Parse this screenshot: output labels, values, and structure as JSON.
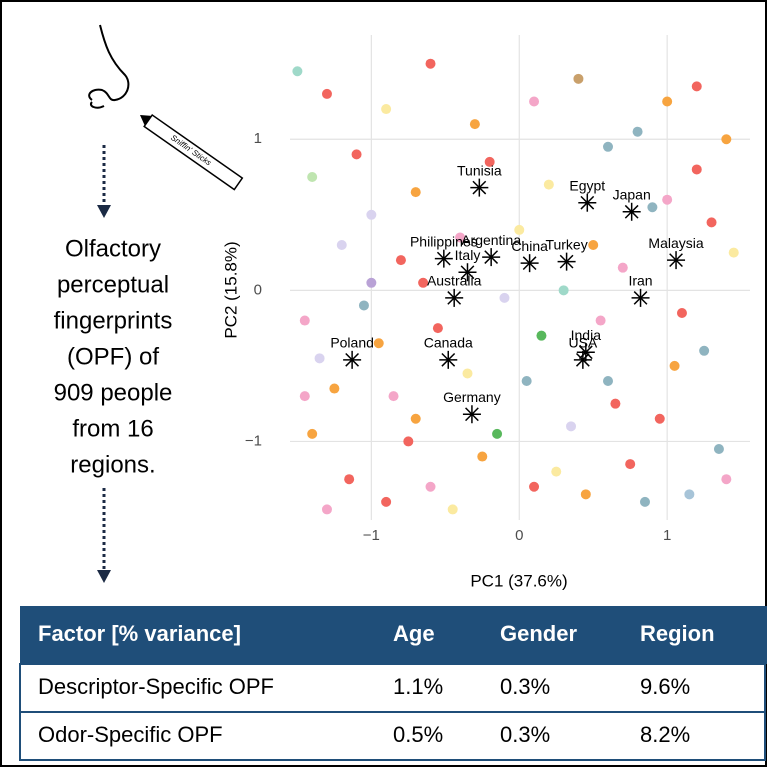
{
  "chart_data": {
    "type": "scatter",
    "xlabel": "PC1 (37.6%)",
    "ylabel": "PC2 (15.8%)",
    "xlim": [
      -1.55,
      1.56
    ],
    "ylim": [
      -1.52,
      1.69
    ],
    "xticks": [
      {
        "value": -1,
        "label": "−1"
      },
      0,
      1
    ],
    "yticks": [
      {
        "value": -1,
        "label": "−1"
      },
      0,
      1
    ],
    "grid": true,
    "marker_color": "#000000",
    "points": [
      {
        "label": "Tunisia",
        "x": -0.27,
        "y": 0.68
      },
      {
        "label": "Egypt",
        "x": 0.46,
        "y": 0.58
      },
      {
        "label": "Japan",
        "x": 0.76,
        "y": 0.52
      },
      {
        "label": "Philippines",
        "x": -0.51,
        "y": 0.21
      },
      {
        "label": "Argentina",
        "x": -0.19,
        "y": 0.22
      },
      {
        "label": "China",
        "x": 0.07,
        "y": 0.18
      },
      {
        "label": "Turkey",
        "x": 0.32,
        "y": 0.19
      },
      {
        "label": "Malaysia",
        "x": 1.06,
        "y": 0.2
      },
      {
        "label": "Italy",
        "x": -0.35,
        "y": 0.12
      },
      {
        "label": "Australia",
        "x": -0.44,
        "y": -0.05
      },
      {
        "label": "Iran",
        "x": 0.82,
        "y": -0.05
      },
      {
        "label": "Poland",
        "x": -1.13,
        "y": -0.46
      },
      {
        "label": "Canada",
        "x": -0.48,
        "y": -0.46
      },
      {
        "label": "India",
        "x": 0.45,
        "y": -0.41
      },
      {
        "label": "USA",
        "x": 0.43,
        "y": -0.46
      },
      {
        "label": "Germany",
        "x": -0.32,
        "y": -0.82
      }
    ],
    "background_points": {
      "x": [
        -1.5,
        -1.3,
        -1.1,
        -0.9,
        -0.6,
        -0.3,
        0.1,
        0.4,
        0.8,
        1.2,
        1.4,
        -1.4,
        -1.0,
        -0.7,
        -0.2,
        0.2,
        0.6,
        1.0,
        1.3,
        -1.2,
        -0.8,
        -0.4,
        0.0,
        0.5,
        0.9,
        1.45,
        -1.45,
        -1.05,
        -0.65,
        -0.1,
        0.3,
        0.7,
        1.1,
        -1.35,
        -0.95,
        -0.55,
        0.15,
        0.55,
        1.25,
        -1.25,
        -0.85,
        -0.35,
        0.05,
        0.65,
        1.05,
        -1.4,
        -0.75,
        -0.25,
        0.35,
        0.95,
        1.35,
        -1.15,
        -0.6,
        0.25,
        0.75,
        1.15,
        -1.3,
        -0.9,
        -0.45,
        0.45,
        0.85,
        1.4,
        -1.0,
        -0.15,
        0.6,
        1.2,
        -0.7,
        0.1,
        1.0,
        -1.45
      ],
      "y": [
        1.45,
        1.3,
        0.9,
        1.2,
        1.5,
        1.1,
        1.25,
        1.4,
        1.05,
        1.35,
        1.0,
        0.75,
        0.5,
        0.65,
        0.85,
        0.7,
        0.95,
        0.6,
        0.45,
        0.3,
        0.2,
        0.35,
        0.4,
        0.3,
        0.55,
        0.25,
        -0.2,
        -0.1,
        0.05,
        -0.05,
        0.0,
        0.15,
        -0.15,
        -0.45,
        -0.35,
        -0.25,
        -0.3,
        -0.2,
        -0.4,
        -0.65,
        -0.7,
        -0.55,
        -0.6,
        -0.75,
        -0.5,
        -0.95,
        -1.0,
        -1.1,
        -0.9,
        -0.85,
        -1.05,
        -1.25,
        -1.3,
        -1.2,
        -1.15,
        -1.35,
        -1.45,
        -1.4,
        -1.45,
        -1.35,
        -1.4,
        -1.25,
        0.05,
        -0.95,
        -0.6,
        0.8,
        -0.85,
        -1.3,
        1.25,
        -0.7
      ],
      "colors": [
        "#9fd9c9",
        "#f2655e",
        "#f2655e",
        "#fbeaa0",
        "#f2655e",
        "#f7a440",
        "#f4a6c8",
        "#c9a06b",
        "#8fb4c0",
        "#f2655e",
        "#f7a440",
        "#bfe5b0",
        "#d9d3ef",
        "#f7a440",
        "#f2655e",
        "#fbeaa0",
        "#8fb4c0",
        "#f4a6c8",
        "#f2655e",
        "#d9d3ef",
        "#f2655e",
        "#f4a6c8",
        "#fbeaa0",
        "#f7a440",
        "#8fb4c0",
        "#fbeaa0",
        "#f4a6c8",
        "#8fb4c0",
        "#f2655e",
        "#d9d3ef",
        "#9fd9c9",
        "#f4a6c8",
        "#f2655e",
        "#d9d3ef",
        "#f7a440",
        "#f2655e",
        "#58b85c",
        "#f4a6c8",
        "#8fb4c0",
        "#f7a440",
        "#f4a6c8",
        "#fbeaa0",
        "#8fb4c0",
        "#f2655e",
        "#f7a440",
        "#f7a440",
        "#f2655e",
        "#f7a440",
        "#d9d3ef",
        "#f2655e",
        "#8fb4c0",
        "#f2655e",
        "#f4a6c8",
        "#fbeaa0",
        "#f2655e",
        "#a7c4d8",
        "#f4a6c8",
        "#f2655e",
        "#fbeaa0",
        "#f7a440",
        "#8fb4c0",
        "#f4a6c8",
        "#b9a2d6",
        "#58b85c",
        "#8fb4c0",
        "#f2655e",
        "#f7a440",
        "#f2655e",
        "#f7a440",
        "#f4a6c8"
      ]
    }
  },
  "pen_label": "Sniffin' Sticks",
  "description": [
    "Olfactory",
    "perceptual",
    "fingerprints",
    "(OPF) of",
    "909 people",
    "from 16",
    "regions."
  ],
  "table": {
    "header": [
      "Factor [% variance]",
      "Age",
      "Gender",
      "Region"
    ],
    "rows": [
      [
        "Descriptor-Specific OPF",
        "1.1%",
        "0.3%",
        "9.6%"
      ],
      [
        "Odor-Specific OPF",
        "0.5%",
        "0.3%",
        "8.2%"
      ]
    ]
  }
}
